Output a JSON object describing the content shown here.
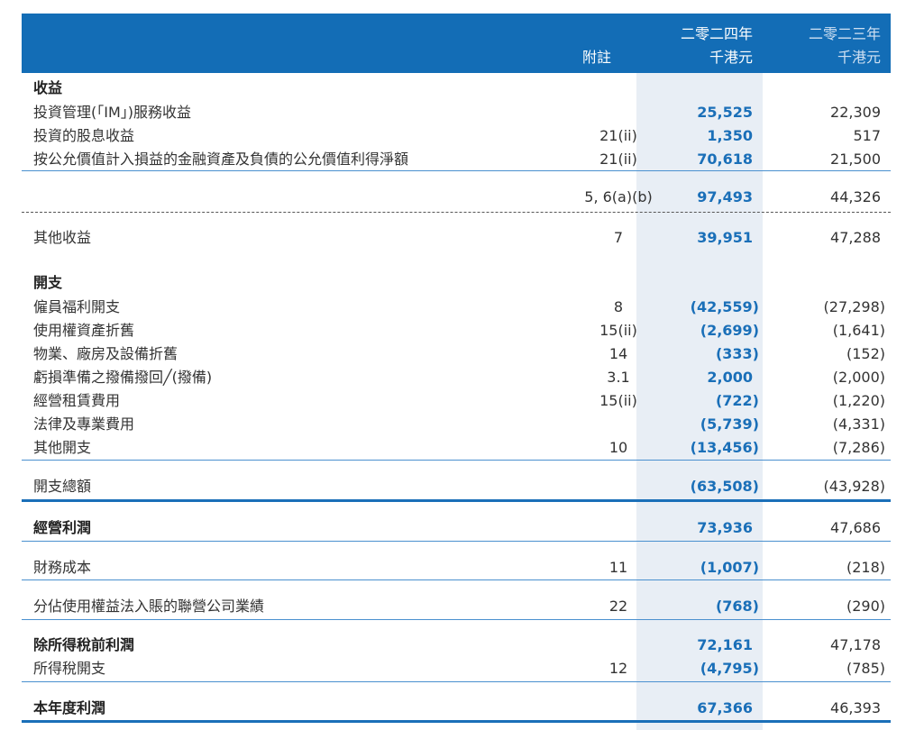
{
  "header": {
    "note_label": "附註",
    "year_2024": "二零二四年",
    "year_2023": "二零二三年",
    "unit_2024": "千港元",
    "unit_2023": "千港元"
  },
  "colors": {
    "header_bg": "#136db6",
    "accent": "#1a6fb8",
    "highlight": "#e8eef5"
  },
  "rows": [
    {
      "label": "收益",
      "note": "",
      "v2024": "",
      "v2023": "",
      "bold": true
    },
    {
      "label": "投資管理(「IM」)服務收益",
      "note": "",
      "v2024": "25,525",
      "v2023": "22,309"
    },
    {
      "label": "投資的股息收益",
      "note": "21(ii)",
      "v2024": "1,350",
      "v2023": "517"
    },
    {
      "label": "按公允價值計入損益的金融資產及負債的公允價值利得淨額",
      "note": "21(ii)",
      "v2024": "70,618",
      "v2023": "21,500"
    },
    {
      "label": "",
      "note": "5, 6(a)(b)",
      "v2024": "97,493",
      "v2023": "44,326"
    },
    {
      "label": "其他收益",
      "note": "7",
      "v2024": "39,951",
      "v2023": "47,288"
    },
    {
      "label": "開支",
      "note": "",
      "v2024": "",
      "v2023": "",
      "bold": true
    },
    {
      "label": "僱員福利開支",
      "note": "8",
      "v2024": "(42,559)",
      "v2023": "(27,298)"
    },
    {
      "label": "使用權資產折舊",
      "note": "15(ii)",
      "v2024": "(2,699)",
      "v2023": "(1,641)"
    },
    {
      "label": "物業、廠房及設備折舊",
      "note": "14",
      "v2024": "(333)",
      "v2023": "(152)"
    },
    {
      "label": "虧損準備之撥備撥回╱(撥備)",
      "note": "3.1",
      "v2024": "2,000",
      "v2023": "(2,000)"
    },
    {
      "label": "經營租賃費用",
      "note": "15(ii)",
      "v2024": "(722)",
      "v2023": "(1,220)"
    },
    {
      "label": "法律及專業費用",
      "note": "",
      "v2024": "(5,739)",
      "v2023": "(4,331)"
    },
    {
      "label": "其他開支",
      "note": "10",
      "v2024": "(13,456)",
      "v2023": "(7,286)"
    },
    {
      "label": "開支總額",
      "note": "",
      "v2024": "(63,508)",
      "v2023": "(43,928)"
    },
    {
      "label": "經營利潤",
      "note": "",
      "v2024": "73,936",
      "v2023": "47,686",
      "bold": true
    },
    {
      "label": "財務成本",
      "note": "11",
      "v2024": "(1,007)",
      "v2023": "(218)"
    },
    {
      "label": "分佔使用權益法入賬的聯營公司業績",
      "note": "22",
      "v2024": "(768)",
      "v2023": "(290)"
    },
    {
      "label": "除所得稅前利潤",
      "note": "",
      "v2024": "72,161",
      "v2023": "47,178",
      "bold": true
    },
    {
      "label": "所得稅開支",
      "note": "12",
      "v2024": "(4,795)",
      "v2023": "(785)"
    },
    {
      "label": "本年度利潤",
      "note": "",
      "v2024": "67,366",
      "v2023": "46,393",
      "bold": true
    }
  ]
}
